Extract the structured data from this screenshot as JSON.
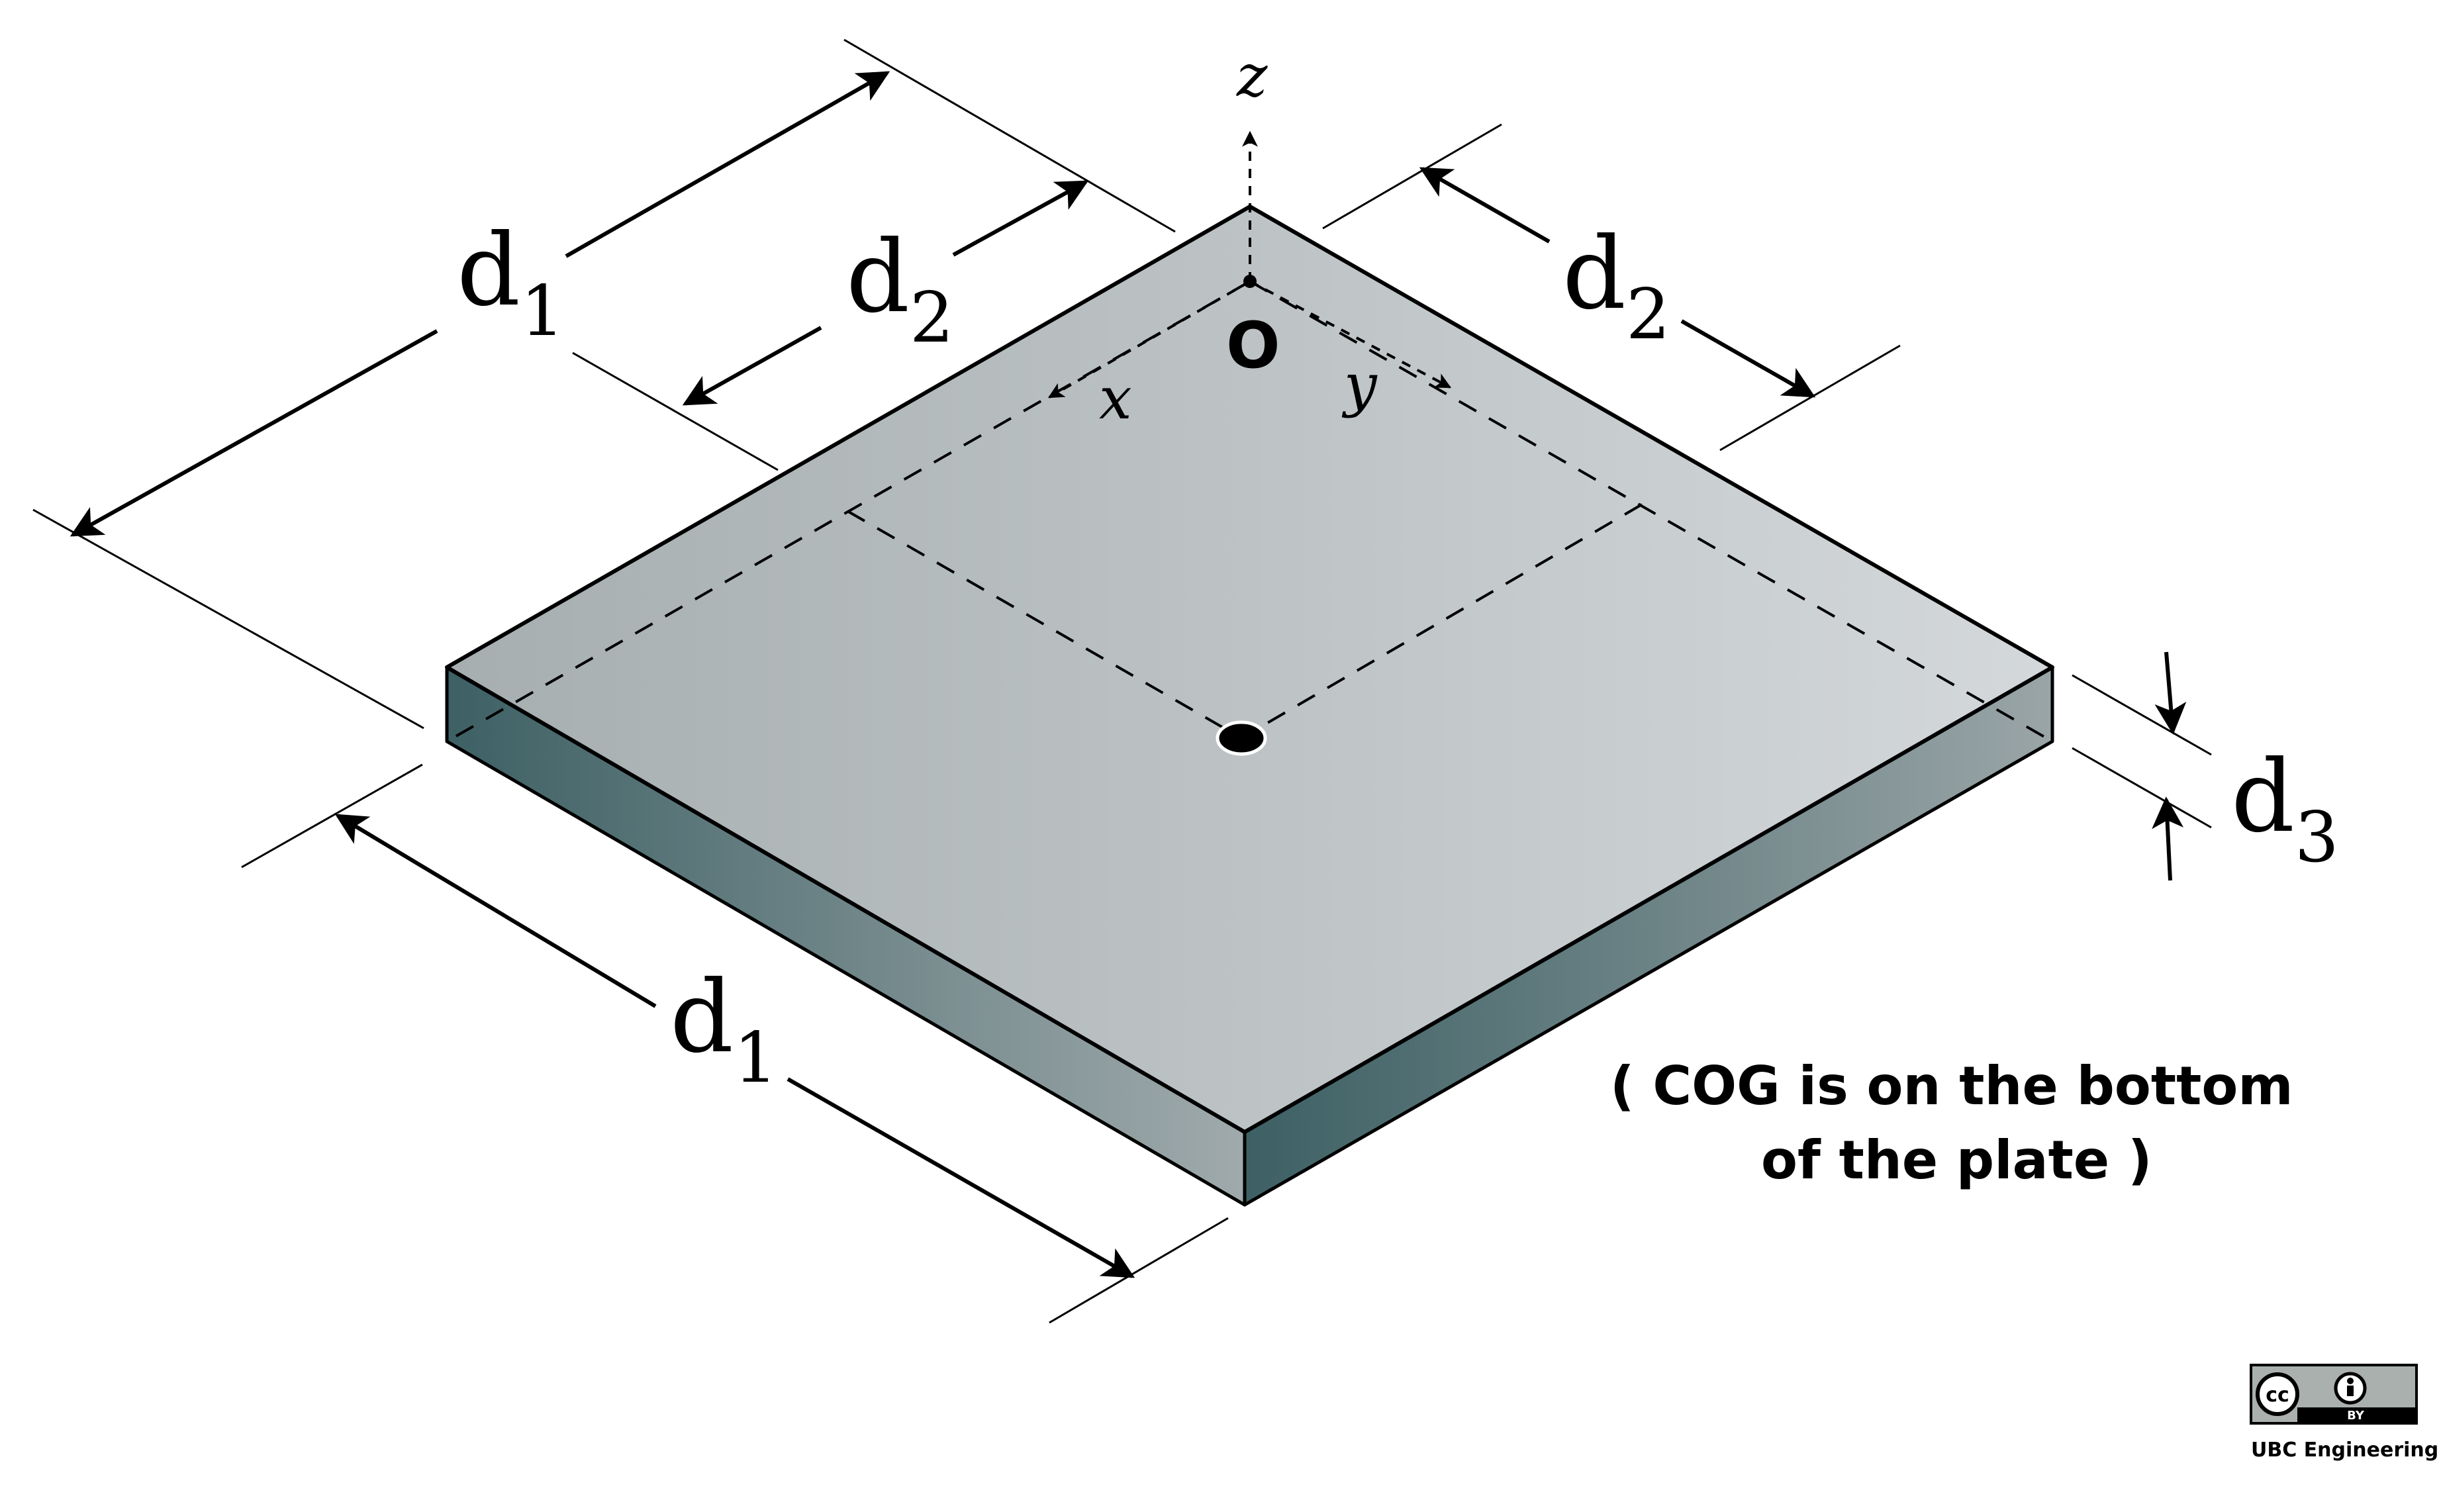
{
  "labels": {
    "d1_upper": "d",
    "d1_upper_sub": "1",
    "d2_left": "d",
    "d2_left_sub": "2",
    "d2_right": "d",
    "d2_right_sub": "2",
    "d1_lower": "d",
    "d1_lower_sub": "1",
    "d3": "d",
    "d3_sub": "3",
    "axis_x": "x",
    "axis_y": "y",
    "axis_z": "z",
    "origin": "O"
  },
  "note": {
    "line1": "( COG is on the bottom",
    "line2": "of the plate )"
  },
  "license": {
    "cc": "cc",
    "by": "BY",
    "credit": "UBC Engineering"
  },
  "colors": {
    "top_face_light": "#d2d6d8",
    "top_face_dark": "#a6aeb0",
    "side_face_dark": "#3d6064",
    "side_face_light": "#9ba6a8",
    "stroke": "#000000"
  }
}
